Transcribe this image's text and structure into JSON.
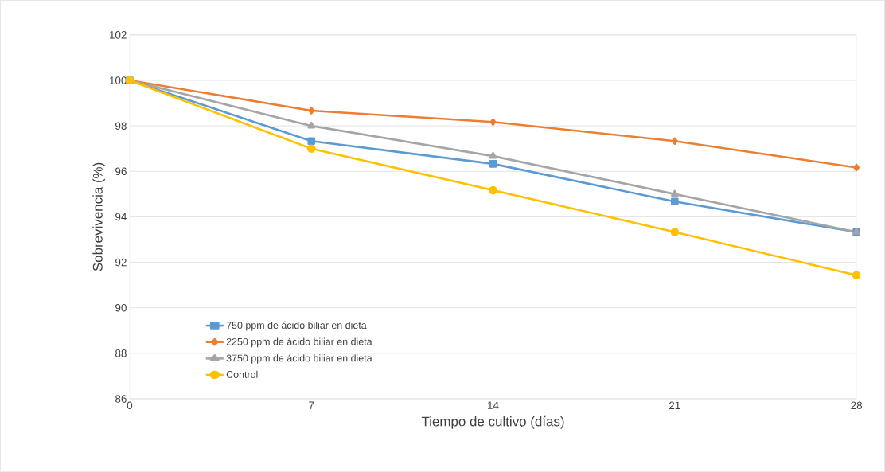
{
  "chart_data": {
    "type": "line",
    "xlabel": "Tiempo de cultivo (días)",
    "ylabel": "Sobrevivencia (%)",
    "x": [
      0,
      7,
      14,
      21,
      28
    ],
    "series": [
      {
        "name": "750 ppm de ácido biliar en dieta",
        "color": "#5b9bd5",
        "marker": "square",
        "values": [
          100,
          97.33,
          96.33,
          94.67,
          93.33
        ]
      },
      {
        "name": "2250 ppm de ácido biliar en dieta",
        "color": "#ed7d31",
        "marker": "diamond",
        "values": [
          100,
          98.67,
          98.17,
          97.33,
          96.17
        ]
      },
      {
        "name": "3750 ppm de ácido biliar en dieta",
        "color": "#a5a5a5",
        "marker": "triangle",
        "values": [
          100,
          98,
          96.67,
          95,
          93.33
        ]
      },
      {
        "name": "Control",
        "color": "#ffc000",
        "marker": "circle",
        "values": [
          100,
          97,
          95.17,
          93.33,
          91.43
        ]
      }
    ],
    "xlim": [
      0,
      28
    ],
    "xticks": [
      0,
      7,
      14,
      21,
      28
    ],
    "ylim": [
      86,
      102
    ],
    "yticks": [
      86,
      88,
      90,
      92,
      94,
      96,
      98,
      100,
      102
    ],
    "grid": "y",
    "legend": "bottom left",
    "line_style": "solid"
  }
}
